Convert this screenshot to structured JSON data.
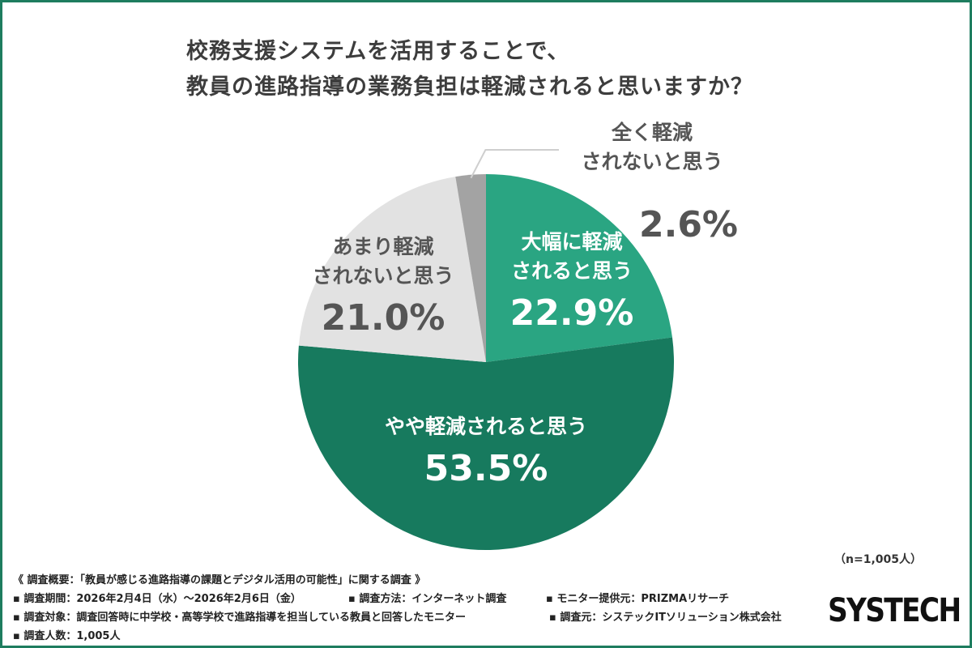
{
  "chart_data": {
    "type": "pie",
    "title_lines": [
      "校務支援システムを活用することで、",
      "教員の進路指導の業務負担は軽減されると思いますか？"
    ],
    "slices": [
      {
        "label_lines": [
          "大幅に軽減",
          "されると思う"
        ],
        "value": 22.9,
        "value_text": "22.9%",
        "color": "#2aa582",
        "text_color": "#ffffff"
      },
      {
        "label_lines": [
          "やや軽減されると思う"
        ],
        "value": 53.5,
        "value_text": "53.5%",
        "color": "#177a5e",
        "text_color": "#ffffff"
      },
      {
        "label_lines": [
          "あまり軽減",
          "されないと思う"
        ],
        "value": 21.0,
        "value_text": "21.0%",
        "color": "#e2e2e2",
        "text_color": "#555555"
      },
      {
        "label_lines": [
          "全く軽減",
          "されないと思う"
        ],
        "value": 2.6,
        "value_text": "2.6%",
        "color": "#a3a3a3",
        "text_color": "#555555"
      }
    ],
    "sample_note": "（n=1,005人）"
  },
  "footer": {
    "summary": "《 調査概要：「教員が感じる進路指導の課題とデジタル活用の可能性」に関する調査 》",
    "period": "▪ 調査期間：2026年2月4日（水）〜2026年2月6日（金）",
    "method": "▪ 調査方法：インターネット調査",
    "monitor": "▪ モニター提供元：PRIZMAリサーチ",
    "target": "▪ 調査対象：調査回答時に中学校・高等学校で進路指導を担当している教員と回答したモニター",
    "source": "▪ 調査元：システックITソリューション株式会社",
    "count": "▪ 調査人数：1,005人"
  },
  "logo_text": "SYSTECH"
}
